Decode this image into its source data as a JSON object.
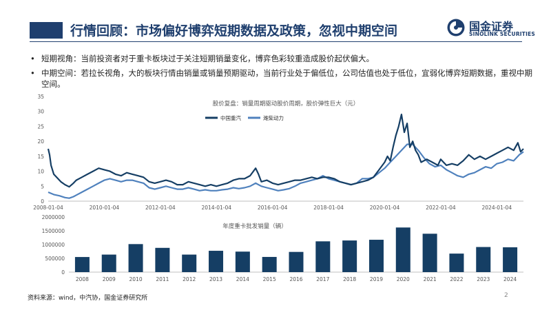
{
  "header": {
    "title": "行情回顾：市场偏好博弈短期数据及政策，忽视中期空间",
    "logo_cn": "国金证券",
    "logo_en": "SINOLINK SECURITIES"
  },
  "bullets": [
    {
      "text": "短期视角：当前投资者对于重卡板块过于关注短期销量变化，博弈色彩较重造成股价起伏偏大。"
    },
    {
      "text": "中期空间：若拉长视角，大的板块行情由销量或销量预期驱动，当前行业处于偏低位，公司估值也处于低位，宜弱化博弈短期数据，重视中期空间。"
    }
  ],
  "chart_data": [
    {
      "type": "line",
      "title": "股价复盘：销量周期驱动股价周期，股价弹性巨大（元）",
      "ylim": [
        0,
        35
      ],
      "yticks": [
        0,
        5,
        10,
        15,
        20,
        25,
        30,
        35
      ],
      "xlim": [
        2008.0,
        2024.95
      ],
      "xtick_labels": [
        "2008-01-04",
        "2010-01-04",
        "2012-01-04",
        "2014-01-04",
        "2016-01-04",
        "2018-01-04",
        "2020-01-04",
        "2022-01-04",
        "2024-01-04"
      ],
      "xtick_values": [
        2008.0,
        2010.0,
        2012.0,
        2014.0,
        2016.0,
        2018.0,
        2020.0,
        2022.0,
        2024.0
      ],
      "legend_position": "top-center",
      "series": [
        {
          "name": "中国重汽",
          "color": "#153e64",
          "x": [
            2008.0,
            2008.05,
            2008.1,
            2008.2,
            2008.3,
            2008.45,
            2008.6,
            2008.75,
            2008.9,
            2009.0,
            2009.2,
            2009.4,
            2009.6,
            2009.8,
            2010.0,
            2010.2,
            2010.4,
            2010.6,
            2010.8,
            2011.0,
            2011.2,
            2011.4,
            2011.6,
            2011.8,
            2012.0,
            2012.2,
            2012.4,
            2012.6,
            2012.8,
            2013.0,
            2013.2,
            2013.4,
            2013.6,
            2013.8,
            2014.0,
            2014.2,
            2014.4,
            2014.6,
            2014.8,
            2015.0,
            2015.2,
            2015.4,
            2015.5,
            2015.6,
            2015.8,
            2016.0,
            2016.2,
            2016.4,
            2016.6,
            2016.8,
            2017.0,
            2017.2,
            2017.4,
            2017.6,
            2017.8,
            2018.0,
            2018.2,
            2018.4,
            2018.6,
            2018.8,
            2019.0,
            2019.2,
            2019.4,
            2019.6,
            2019.8,
            2020.0,
            2020.1,
            2020.2,
            2020.3,
            2020.4,
            2020.5,
            2020.6,
            2020.7,
            2020.8,
            2020.85,
            2020.9,
            2021.0,
            2021.1,
            2021.2,
            2021.3,
            2021.5,
            2021.7,
            2021.9,
            2022.0,
            2022.2,
            2022.4,
            2022.6,
            2022.8,
            2023.0,
            2023.2,
            2023.4,
            2023.6,
            2023.8,
            2024.0,
            2024.2,
            2024.4,
            2024.6,
            2024.75,
            2024.85,
            2024.95
          ],
          "y": [
            17.5,
            15.5,
            12.0,
            9.0,
            8.0,
            6.5,
            5.5,
            4.8,
            6.0,
            7.0,
            8.0,
            9.0,
            10.0,
            11.0,
            10.5,
            10.0,
            9.0,
            8.5,
            9.5,
            9.0,
            8.5,
            8.0,
            6.5,
            6.0,
            6.5,
            7.0,
            6.5,
            5.5,
            5.5,
            6.5,
            6.0,
            5.5,
            5.0,
            5.5,
            5.0,
            5.5,
            6.0,
            7.0,
            7.5,
            7.5,
            8.5,
            11.0,
            9.0,
            6.5,
            7.0,
            6.0,
            5.5,
            6.0,
            6.5,
            7.0,
            7.0,
            7.5,
            8.0,
            7.5,
            8.0,
            8.0,
            7.5,
            6.5,
            6.0,
            5.5,
            6.0,
            6.5,
            7.0,
            8.0,
            10.5,
            13.0,
            15.0,
            13.5,
            18.0,
            22.0,
            25.0,
            29.0,
            23.0,
            26.0,
            22.0,
            18.0,
            20.0,
            17.0,
            15.5,
            13.0,
            14.0,
            13.0,
            12.0,
            14.0,
            12.0,
            12.5,
            12.0,
            13.5,
            15.5,
            14.0,
            15.0,
            14.0,
            15.0,
            16.0,
            17.0,
            18.0,
            17.0,
            19.5,
            16.5,
            17.5
          ]
        },
        {
          "name": "潍柴动力",
          "color": "#4f81bd",
          "x": [
            2008.0,
            2008.2,
            2008.4,
            2008.6,
            2008.75,
            2008.9,
            2009.0,
            2009.2,
            2009.4,
            2009.6,
            2009.8,
            2010.0,
            2010.2,
            2010.4,
            2010.6,
            2010.8,
            2011.0,
            2011.2,
            2011.4,
            2011.6,
            2011.8,
            2012.0,
            2012.2,
            2012.4,
            2012.6,
            2012.8,
            2013.0,
            2013.2,
            2013.4,
            2013.6,
            2013.8,
            2014.0,
            2014.2,
            2014.4,
            2014.6,
            2014.8,
            2015.0,
            2015.2,
            2015.4,
            2015.6,
            2015.8,
            2016.0,
            2016.2,
            2016.4,
            2016.6,
            2016.8,
            2017.0,
            2017.2,
            2017.4,
            2017.6,
            2017.8,
            2018.0,
            2018.2,
            2018.4,
            2018.6,
            2018.8,
            2019.0,
            2019.2,
            2019.4,
            2019.6,
            2019.8,
            2020.0,
            2020.2,
            2020.4,
            2020.6,
            2020.8,
            2021.0,
            2021.2,
            2021.4,
            2021.6,
            2021.8,
            2022.0,
            2022.2,
            2022.4,
            2022.6,
            2022.8,
            2023.0,
            2023.2,
            2023.4,
            2023.6,
            2023.8,
            2024.0,
            2024.2,
            2024.4,
            2024.6,
            2024.8,
            2024.95
          ],
          "y": [
            3.0,
            2.2,
            1.8,
            1.2,
            1.0,
            1.5,
            2.0,
            3.0,
            4.0,
            5.0,
            6.0,
            7.0,
            7.5,
            7.0,
            6.5,
            7.0,
            7.0,
            6.5,
            6.0,
            4.5,
            4.0,
            4.5,
            5.0,
            4.5,
            4.0,
            4.0,
            4.5,
            4.0,
            3.5,
            3.8,
            3.5,
            3.5,
            3.8,
            4.0,
            4.5,
            4.2,
            4.5,
            5.0,
            6.0,
            5.0,
            4.5,
            4.0,
            3.5,
            3.8,
            4.2,
            5.0,
            6.0,
            6.5,
            7.0,
            7.5,
            8.5,
            7.5,
            7.0,
            6.5,
            6.0,
            5.5,
            6.0,
            7.5,
            7.5,
            8.0,
            9.5,
            11.0,
            13.0,
            15.0,
            17.0,
            19.0,
            19.0,
            17.0,
            14.5,
            12.5,
            11.5,
            12.0,
            10.5,
            9.5,
            8.5,
            8.0,
            9.0,
            9.5,
            10.5,
            11.5,
            11.0,
            12.5,
            13.0,
            14.0,
            13.5,
            15.5,
            16.5
          ]
        }
      ]
    },
    {
      "type": "bar",
      "title": "年度重卡批发销量（辆）",
      "ylim": [
        0,
        2000000
      ],
      "yticks": [
        0,
        500000,
        1000000,
        1500000,
        2000000
      ],
      "categories": [
        "2008",
        "2009",
        "2010",
        "2011",
        "2012",
        "2013",
        "2014",
        "2015",
        "2016",
        "2017",
        "2018",
        "2019",
        "2020",
        "2021",
        "2022",
        "2023",
        "2024"
      ],
      "values": [
        548000,
        636000,
        1017000,
        880000,
        636000,
        774000,
        744000,
        551000,
        733000,
        1117000,
        1148000,
        1174000,
        1619000,
        1393000,
        672000,
        911000,
        901000
      ],
      "color": "#153e64"
    }
  ],
  "footer": {
    "source": "资料来源：wind，中汽协，国金证券研究所",
    "page": "2"
  }
}
